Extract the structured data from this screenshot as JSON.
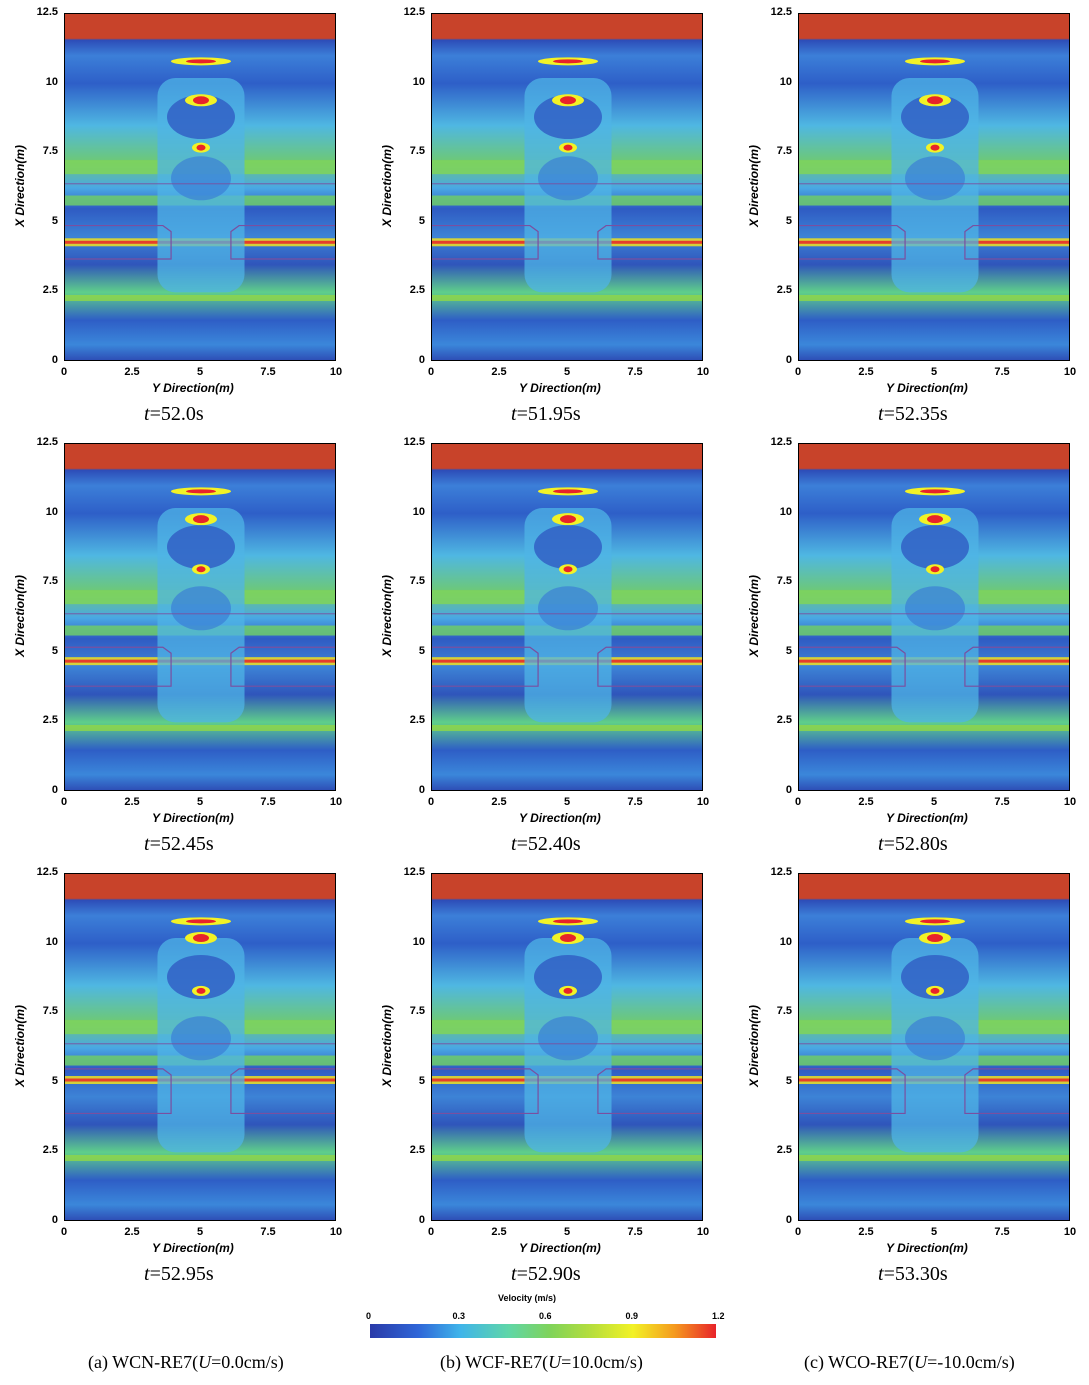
{
  "panels": [
    {
      "id": "a1",
      "time": "52.0s"
    },
    {
      "id": "b1",
      "time": "51.95s"
    },
    {
      "id": "c1",
      "time": "52.35s"
    },
    {
      "id": "a2",
      "time": "52.45s"
    },
    {
      "id": "b2",
      "time": "52.40s"
    },
    {
      "id": "c2",
      "time": "52.80s"
    },
    {
      "id": "a3",
      "time": "52.95s"
    },
    {
      "id": "b3",
      "time": "52.90s"
    },
    {
      "id": "c3",
      "time": "53.30s"
    }
  ],
  "axes": {
    "xlabel": "Y Direction(m)",
    "ylabel": "X Direction(m)",
    "yticks": [
      "0",
      "2.5",
      "5",
      "7.5",
      "10",
      "12.5"
    ],
    "xticks": [
      "0",
      "2.5",
      "5",
      "7.5",
      "10"
    ],
    "xticks_clipped": [
      "0",
      "2.5",
      "5",
      "7.5",
      "10"
    ],
    "t_prefix": "t"
  },
  "captions": {
    "a": {
      "prefix": "(a)  WCN-RE7(",
      "u": "U",
      "value": "=0.0cm/s)"
    },
    "b": {
      "prefix": "(b)  WCF-RE7(",
      "u": "U",
      "value": "=10.0cm/s)"
    },
    "c": {
      "prefix": "(c)  WCO-RE7(",
      "u": "U",
      "value": "=-10.0cm/s)"
    }
  },
  "colorbar": {
    "title": "Velocity (m/s)",
    "labels": [
      "0",
      "0.3",
      "0.6",
      "0.9",
      "1.2"
    ]
  },
  "chart_data": {
    "type": "heatmap",
    "quantity": "Velocity (m/s)",
    "value_range": [
      0,
      1.2
    ],
    "xlabel": "Y Direction(m)",
    "ylabel": "X Direction(m)",
    "xlim": [
      0,
      10
    ],
    "ylim": [
      0,
      12.5
    ],
    "grid": [
      {
        "case": "WCN-RE7",
        "U": "0.0cm/s",
        "times": [
          "52.0s",
          "52.45s",
          "52.95s"
        ]
      },
      {
        "case": "WCF-RE7",
        "U": "10.0cm/s",
        "times": [
          "51.95s",
          "52.40s",
          "52.90s"
        ]
      },
      {
        "case": "WCO-RE7",
        "U": "-10.0cm/s",
        "times": [
          "52.35s",
          "52.80s",
          "53.30s"
        ]
      }
    ],
    "colors": {
      "low": "#2a3aa8",
      "mid": "#7fd35a",
      "high": "#e8232a"
    }
  }
}
